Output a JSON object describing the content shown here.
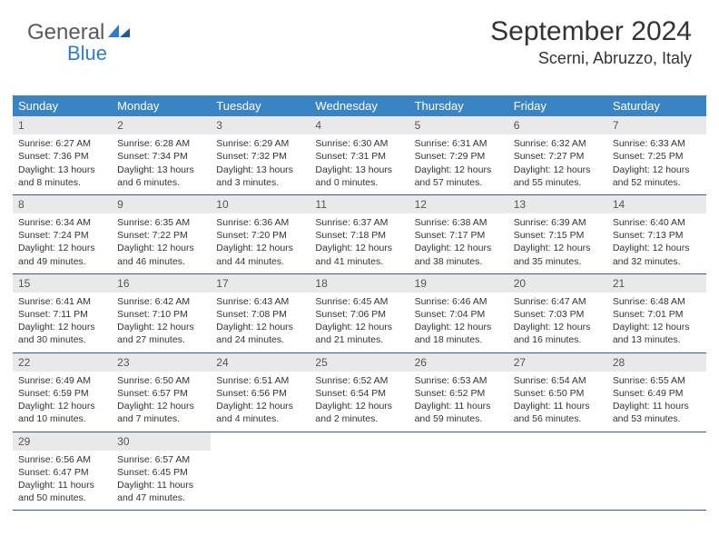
{
  "logo": {
    "part1": "General",
    "part2": "Blue"
  },
  "header": {
    "month_title": "September 2024",
    "location": "Scerni, Abruzzo, Italy"
  },
  "colors": {
    "header_bg": "#3b84c4",
    "header_text": "#ffffff",
    "daynum_bg": "#e9e9e9",
    "row_border": "#2f5f8f",
    "logo_blue": "#2e7cd1",
    "logo_gray": "#5a5a5a"
  },
  "weekdays": [
    "Sunday",
    "Monday",
    "Tuesday",
    "Wednesday",
    "Thursday",
    "Friday",
    "Saturday"
  ],
  "weeks": [
    [
      {
        "n": "1",
        "sr": "Sunrise: 6:27 AM",
        "ss": "Sunset: 7:36 PM",
        "dl": "Daylight: 13 hours and 8 minutes."
      },
      {
        "n": "2",
        "sr": "Sunrise: 6:28 AM",
        "ss": "Sunset: 7:34 PM",
        "dl": "Daylight: 13 hours and 6 minutes."
      },
      {
        "n": "3",
        "sr": "Sunrise: 6:29 AM",
        "ss": "Sunset: 7:32 PM",
        "dl": "Daylight: 13 hours and 3 minutes."
      },
      {
        "n": "4",
        "sr": "Sunrise: 6:30 AM",
        "ss": "Sunset: 7:31 PM",
        "dl": "Daylight: 13 hours and 0 minutes."
      },
      {
        "n": "5",
        "sr": "Sunrise: 6:31 AM",
        "ss": "Sunset: 7:29 PM",
        "dl": "Daylight: 12 hours and 57 minutes."
      },
      {
        "n": "6",
        "sr": "Sunrise: 6:32 AM",
        "ss": "Sunset: 7:27 PM",
        "dl": "Daylight: 12 hours and 55 minutes."
      },
      {
        "n": "7",
        "sr": "Sunrise: 6:33 AM",
        "ss": "Sunset: 7:25 PM",
        "dl": "Daylight: 12 hours and 52 minutes."
      }
    ],
    [
      {
        "n": "8",
        "sr": "Sunrise: 6:34 AM",
        "ss": "Sunset: 7:24 PM",
        "dl": "Daylight: 12 hours and 49 minutes."
      },
      {
        "n": "9",
        "sr": "Sunrise: 6:35 AM",
        "ss": "Sunset: 7:22 PM",
        "dl": "Daylight: 12 hours and 46 minutes."
      },
      {
        "n": "10",
        "sr": "Sunrise: 6:36 AM",
        "ss": "Sunset: 7:20 PM",
        "dl": "Daylight: 12 hours and 44 minutes."
      },
      {
        "n": "11",
        "sr": "Sunrise: 6:37 AM",
        "ss": "Sunset: 7:18 PM",
        "dl": "Daylight: 12 hours and 41 minutes."
      },
      {
        "n": "12",
        "sr": "Sunrise: 6:38 AM",
        "ss": "Sunset: 7:17 PM",
        "dl": "Daylight: 12 hours and 38 minutes."
      },
      {
        "n": "13",
        "sr": "Sunrise: 6:39 AM",
        "ss": "Sunset: 7:15 PM",
        "dl": "Daylight: 12 hours and 35 minutes."
      },
      {
        "n": "14",
        "sr": "Sunrise: 6:40 AM",
        "ss": "Sunset: 7:13 PM",
        "dl": "Daylight: 12 hours and 32 minutes."
      }
    ],
    [
      {
        "n": "15",
        "sr": "Sunrise: 6:41 AM",
        "ss": "Sunset: 7:11 PM",
        "dl": "Daylight: 12 hours and 30 minutes."
      },
      {
        "n": "16",
        "sr": "Sunrise: 6:42 AM",
        "ss": "Sunset: 7:10 PM",
        "dl": "Daylight: 12 hours and 27 minutes."
      },
      {
        "n": "17",
        "sr": "Sunrise: 6:43 AM",
        "ss": "Sunset: 7:08 PM",
        "dl": "Daylight: 12 hours and 24 minutes."
      },
      {
        "n": "18",
        "sr": "Sunrise: 6:45 AM",
        "ss": "Sunset: 7:06 PM",
        "dl": "Daylight: 12 hours and 21 minutes."
      },
      {
        "n": "19",
        "sr": "Sunrise: 6:46 AM",
        "ss": "Sunset: 7:04 PM",
        "dl": "Daylight: 12 hours and 18 minutes."
      },
      {
        "n": "20",
        "sr": "Sunrise: 6:47 AM",
        "ss": "Sunset: 7:03 PM",
        "dl": "Daylight: 12 hours and 16 minutes."
      },
      {
        "n": "21",
        "sr": "Sunrise: 6:48 AM",
        "ss": "Sunset: 7:01 PM",
        "dl": "Daylight: 12 hours and 13 minutes."
      }
    ],
    [
      {
        "n": "22",
        "sr": "Sunrise: 6:49 AM",
        "ss": "Sunset: 6:59 PM",
        "dl": "Daylight: 12 hours and 10 minutes."
      },
      {
        "n": "23",
        "sr": "Sunrise: 6:50 AM",
        "ss": "Sunset: 6:57 PM",
        "dl": "Daylight: 12 hours and 7 minutes."
      },
      {
        "n": "24",
        "sr": "Sunrise: 6:51 AM",
        "ss": "Sunset: 6:56 PM",
        "dl": "Daylight: 12 hours and 4 minutes."
      },
      {
        "n": "25",
        "sr": "Sunrise: 6:52 AM",
        "ss": "Sunset: 6:54 PM",
        "dl": "Daylight: 12 hours and 2 minutes."
      },
      {
        "n": "26",
        "sr": "Sunrise: 6:53 AM",
        "ss": "Sunset: 6:52 PM",
        "dl": "Daylight: 11 hours and 59 minutes."
      },
      {
        "n": "27",
        "sr": "Sunrise: 6:54 AM",
        "ss": "Sunset: 6:50 PM",
        "dl": "Daylight: 11 hours and 56 minutes."
      },
      {
        "n": "28",
        "sr": "Sunrise: 6:55 AM",
        "ss": "Sunset: 6:49 PM",
        "dl": "Daylight: 11 hours and 53 minutes."
      }
    ],
    [
      {
        "n": "29",
        "sr": "Sunrise: 6:56 AM",
        "ss": "Sunset: 6:47 PM",
        "dl": "Daylight: 11 hours and 50 minutes."
      },
      {
        "n": "30",
        "sr": "Sunrise: 6:57 AM",
        "ss": "Sunset: 6:45 PM",
        "dl": "Daylight: 11 hours and 47 minutes."
      },
      {
        "empty": true
      },
      {
        "empty": true
      },
      {
        "empty": true
      },
      {
        "empty": true
      },
      {
        "empty": true
      }
    ]
  ]
}
